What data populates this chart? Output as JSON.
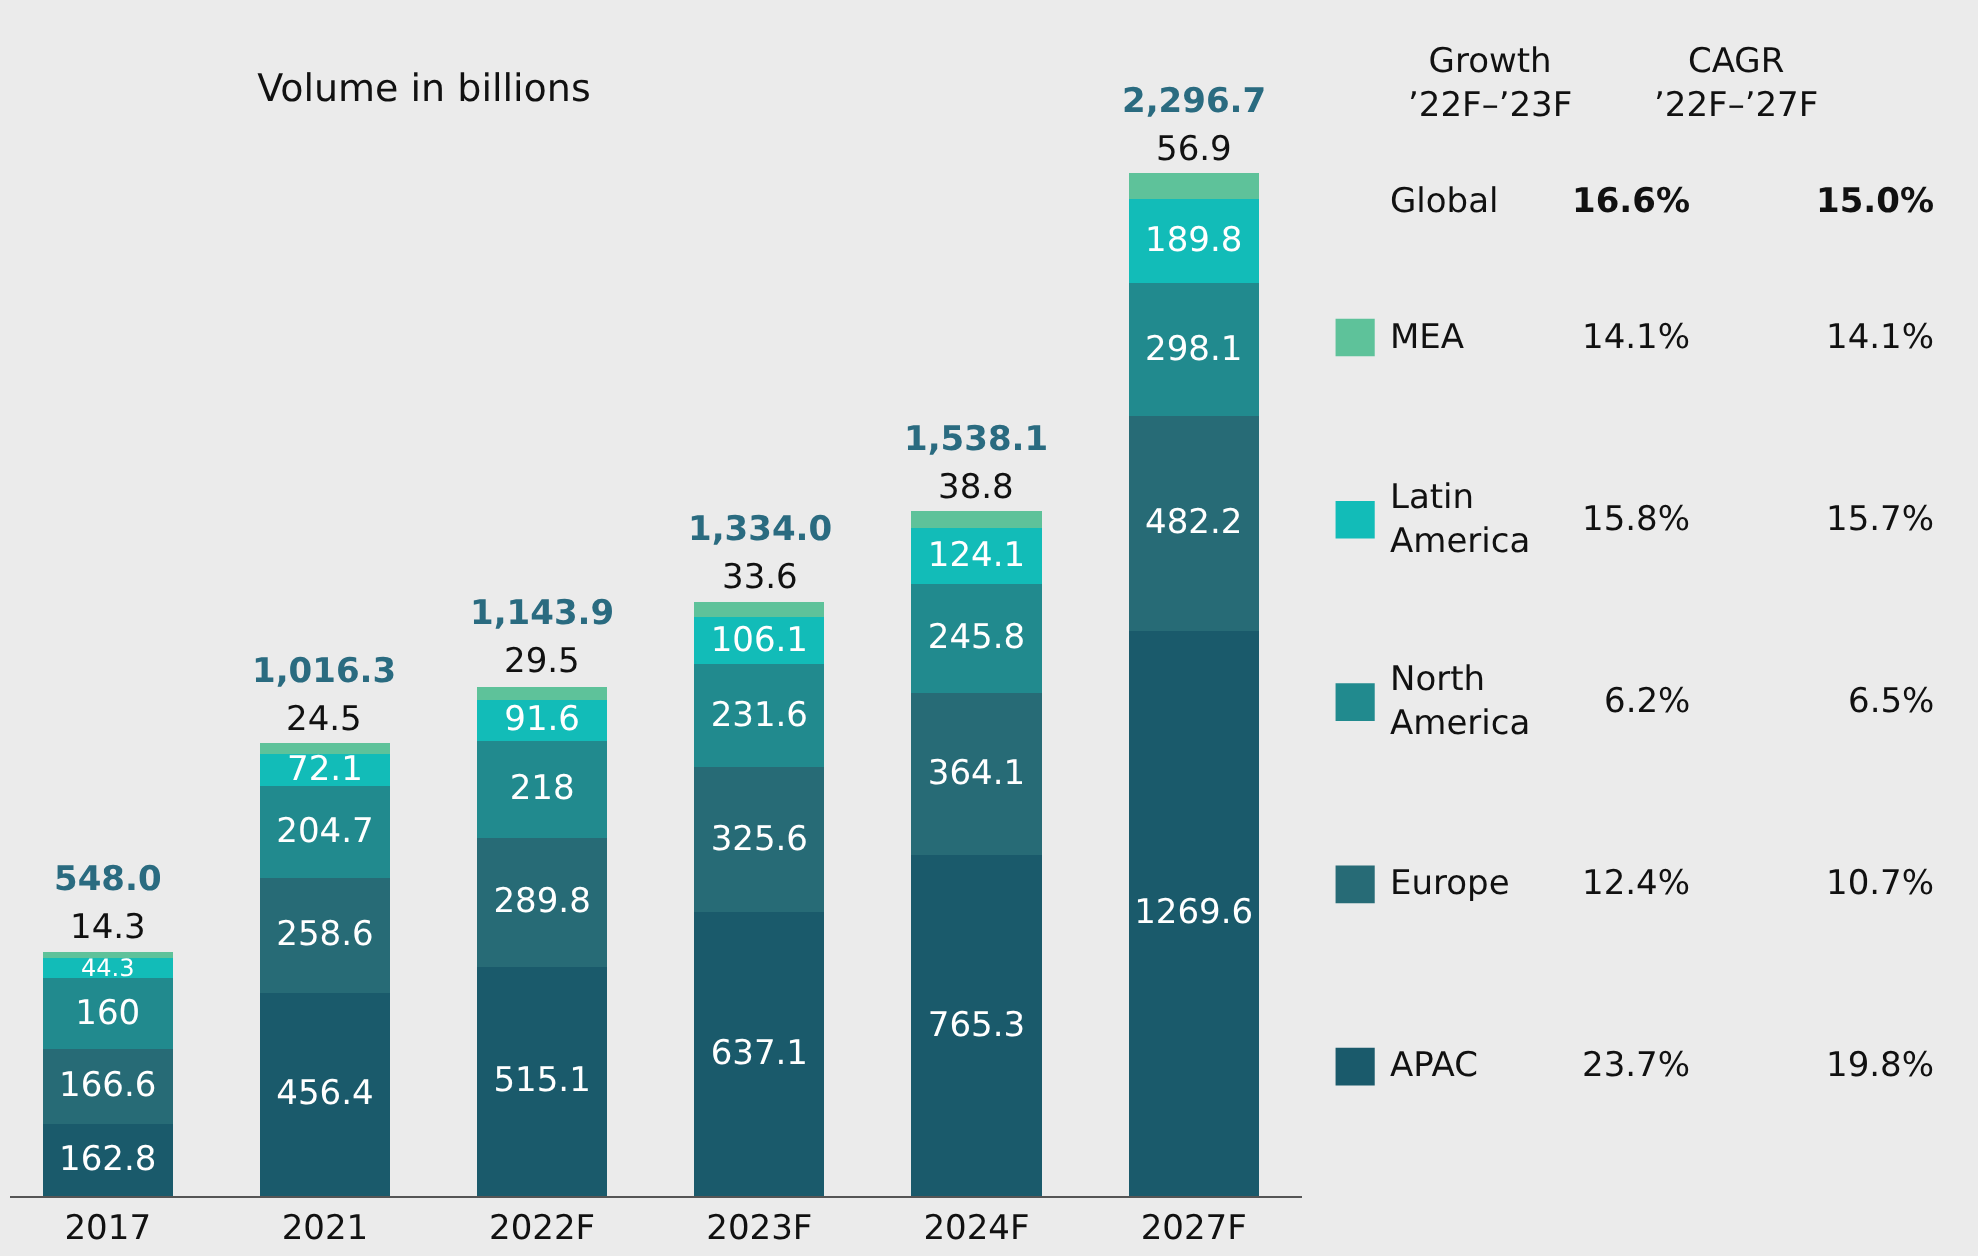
{
  "chart_data": {
    "type": "bar",
    "title": "Volume in billions",
    "stacked": true,
    "data_labels": true,
    "tick_labels": "x",
    "grid": false,
    "legend": "right",
    "categories": [
      "2017",
      "2021",
      "2022F",
      "2023F",
      "2024F",
      "2027F"
    ],
    "series": [
      {
        "name": "APAC",
        "color": "#1a5a6b",
        "values": [
          162.8,
          456.4,
          515.1,
          637.1,
          765.3,
          1269.6
        ]
      },
      {
        "name": "Europe",
        "color": "#276b76",
        "values": [
          166.6,
          258.6,
          289.8,
          325.6,
          364.1,
          482.2
        ]
      },
      {
        "name": "North America",
        "color": "#218a8e",
        "values": [
          160,
          204.7,
          218,
          231.6,
          245.8,
          298.1
        ]
      },
      {
        "name": "Latin America",
        "color": "#12bcb8",
        "values": [
          44.3,
          72.1,
          91.6,
          106.1,
          124.1,
          189.8
        ]
      },
      {
        "name": "MEA",
        "color": "#5ec29a",
        "values": [
          14.3,
          24.5,
          29.5,
          33.6,
          38.8,
          56.9
        ]
      }
    ],
    "totals": [
      "548.0",
      "1,016.3",
      "1,143.9",
      "1,334.0",
      "1,538.1",
      "2,296.7"
    ],
    "annotations": [
      "Growth\n’22F–’23F",
      "CAGR\n’22F–’27F",
      "Global",
      "16.6%",
      "15.0%",
      "14.1%",
      "14.1%",
      "15.8%",
      "15.7%",
      "6.2%",
      "6.5%",
      "12.4%",
      "10.7%",
      "23.7%",
      "19.8%"
    ]
  }
}
